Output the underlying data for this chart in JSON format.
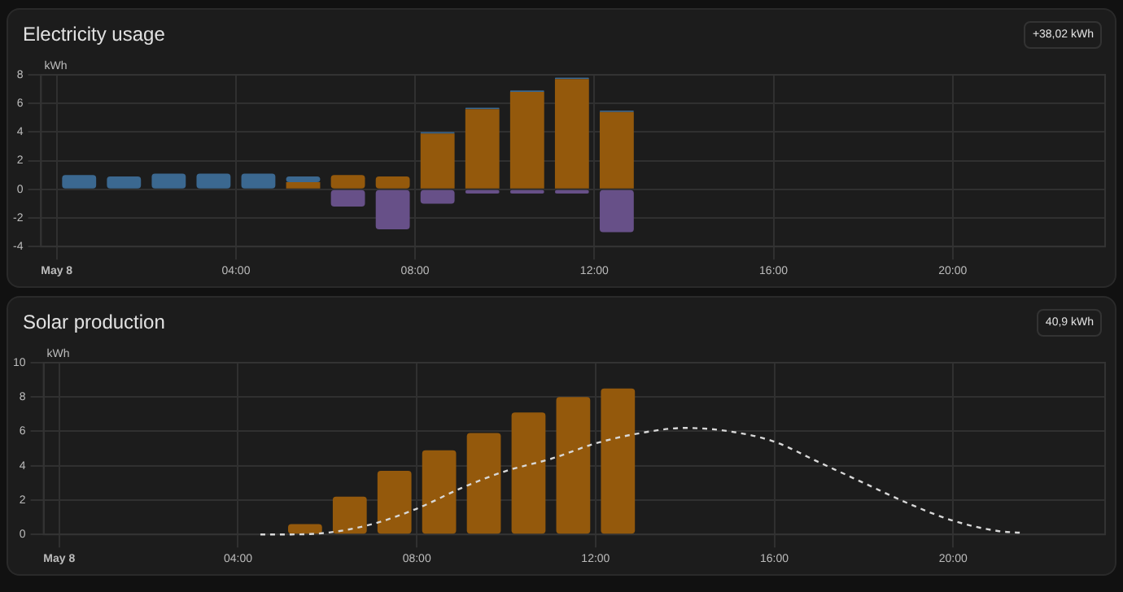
{
  "chart_data": [
    {
      "type": "bar",
      "title": "Electricity usage",
      "ylabel": "kWh",
      "annotations": [
        "+38,02 kWh"
      ],
      "stacked": true,
      "grid": true,
      "x": [
        0.5,
        1.5,
        2.5,
        3.5,
        4.5,
        5.5,
        6.5,
        7.5,
        8.5,
        9.5,
        10.5,
        11.5,
        12.5
      ],
      "series": [
        {
          "color": "#94590c",
          "values": [
            0,
            0,
            0,
            0,
            0,
            0.5,
            1.0,
            0.9,
            3.9,
            5.6,
            6.8,
            7.7,
            5.4
          ]
        },
        {
          "color": "#3b6890",
          "values": [
            1.0,
            0.9,
            1.1,
            1.1,
            1.1,
            0.4,
            0,
            0,
            0.1,
            0.1,
            0.1,
            0.1,
            0.1
          ]
        },
        {
          "color": "#675088",
          "values": [
            0,
            0,
            0,
            0,
            0,
            0,
            -1.2,
            -2.8,
            -1.0,
            -0.3,
            -0.3,
            -0.3,
            -3.0
          ]
        }
      ],
      "xlim": [
        -0.35,
        23.4
      ],
      "xticks": [
        {
          "value": 0,
          "label": "May 8"
        },
        {
          "value": 4,
          "label": "04:00"
        },
        {
          "value": 8,
          "label": "08:00"
        },
        {
          "value": 12,
          "label": "12:00"
        },
        {
          "value": 16,
          "label": "16:00"
        },
        {
          "value": 20,
          "label": "20:00"
        }
      ],
      "ylim": [
        -4,
        8
      ],
      "yticks": [
        -4,
        -2,
        0,
        2,
        4,
        6,
        8
      ]
    },
    {
      "type": "bar",
      "title": "Solar production",
      "ylabel": "kWh",
      "annotations": [
        "40,9 kWh"
      ],
      "grid": true,
      "line_style": "dashed",
      "marker": "none",
      "series": [
        {
          "color": "#94590c",
          "x": [
            5.5,
            6.5,
            7.5,
            8.5,
            9.5,
            10.5,
            11.5,
            12.5
          ],
          "values": [
            0.6,
            2.2,
            3.7,
            4.9,
            5.9,
            7.1,
            8.0,
            8.5
          ]
        },
        {
          "type": "line",
          "color": "#d8d8d8",
          "x": [
            4.5,
            5,
            6,
            7,
            8,
            9,
            10,
            11,
            12,
            13,
            14,
            15,
            16,
            17,
            18,
            19,
            20,
            21,
            21.5
          ],
          "values": [
            0,
            0,
            0.1,
            0.6,
            1.5,
            2.7,
            3.7,
            4.4,
            5.3,
            5.9,
            6.2,
            6.0,
            5.4,
            4.2,
            3.0,
            1.8,
            0.8,
            0.2,
            0.1
          ]
        }
      ],
      "xlim": [
        -0.35,
        23.4
      ],
      "xticks": [
        {
          "value": 0,
          "label": "May 8"
        },
        {
          "value": 4,
          "label": "04:00"
        },
        {
          "value": 8,
          "label": "08:00"
        },
        {
          "value": 12,
          "label": "12:00"
        },
        {
          "value": 16,
          "label": "16:00"
        },
        {
          "value": 20,
          "label": "20:00"
        }
      ],
      "ylim": [
        0,
        10
      ],
      "yticks": [
        0,
        2,
        4,
        6,
        8,
        10
      ]
    }
  ]
}
